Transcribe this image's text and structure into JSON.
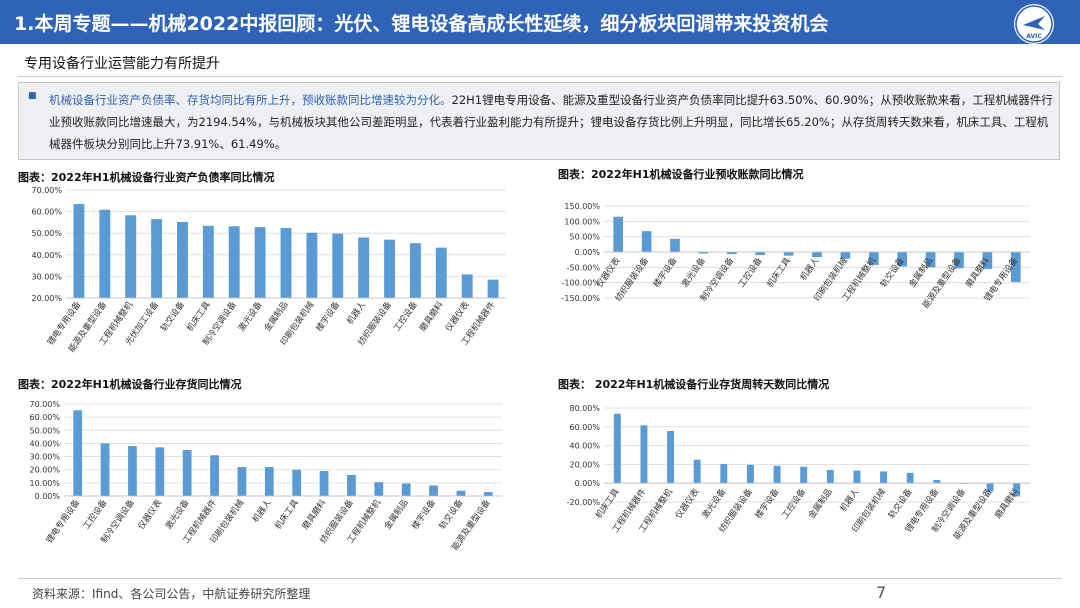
{
  "header": {
    "title": "1.本周专题——机械2022中报回顾：光伏、锂电设备高成长性延续，细分板块回调带来投资机会",
    "logo_text": "AVIC"
  },
  "subtitle": "专用设备行业运营能力有所提升",
  "summary": {
    "bullet": "■",
    "highlight": "机械设备行业资产负债率、存货均同比有所上升，预收账款同比增速较为分化。",
    "body": "22H1锂电专用设备、能源及重型设备行业资产负债率同比提升63.50%、60.90%；从预收账款来看，工程机械器件行业预收账款同比增速最大，为2194.54%，与机械板块其他公司差距明显，代表着行业盈利能力有所提升；锂电设备存货比例上升明显，同比增长65.20%；从存货周转天数来看，机床工具、工程机械器件板块分别同比上升73.91%、61.49%。"
  },
  "chart_data": [
    {
      "type": "bar",
      "title": "图表：2022年H1机械设备行业资产负债率同比情况",
      "categories": [
        "锂电专用设备",
        "能源及重型设备",
        "工程机械整机",
        "光伏加工设备",
        "轨交设备",
        "机床工具",
        "制冷空调设备",
        "激光设备",
        "金属制品",
        "印刷包装机械",
        "楼宇设备",
        "机器人",
        "纺织服装设备",
        "工控设备",
        "磨具磨料",
        "仪器仪表",
        "工程机械器件"
      ],
      "values": [
        63.5,
        60.9,
        58.3,
        56.5,
        55.2,
        53.4,
        53.2,
        52.8,
        52.4,
        50.2,
        49.8,
        48.0,
        47.0,
        45.4,
        43.3,
        30.9,
        28.5
      ],
      "yticks": [
        "20.00%",
        "30.00%",
        "40.00%",
        "50.00%",
        "60.00%",
        "70.00%"
      ],
      "ylim": [
        20,
        70
      ],
      "color": "#5b9bd5"
    },
    {
      "type": "bar",
      "title": "图表：2022年H1机械设备行业预收账款同比情况",
      "categories": [
        "仪器仪表",
        "纺织服装设备",
        "楼宇设备",
        "激光设备",
        "制冷空调设备",
        "工控设备",
        "机床工具",
        "机器人",
        "印刷包装机械",
        "工程机械整机",
        "轨交设备",
        "金属制品",
        "能源及重型设备",
        "磨具磨料",
        "锂电专用设备"
      ],
      "values": [
        115,
        68,
        43,
        -5,
        -7,
        -10,
        -12,
        -17,
        -22,
        -42,
        -47,
        -50,
        -53,
        -55,
        -98
      ],
      "yticks": [
        "-150.00%",
        "-100.00%",
        "-50.00%",
        "0.00%",
        "50.00%",
        "100.00%",
        "150.00%"
      ],
      "ylim": [
        -150,
        150
      ],
      "color": "#5b9bd5"
    },
    {
      "type": "bar",
      "title": "图表：2022年H1机械设备行业存货同比情况",
      "categories": [
        "锂电专用设备",
        "工控设备",
        "制冷空调设备",
        "仪器仪表",
        "激光设备",
        "工程机械器件",
        "印刷包装机械",
        "机器人",
        "机床工具",
        "磨具磨料",
        "纺织服装设备",
        "工程机械整机",
        "金属制品",
        "楼宇设备",
        "轨交设备",
        "能源及重型设备"
      ],
      "values": [
        65.2,
        40.0,
        38.0,
        37.0,
        35.0,
        31.0,
        22.0,
        22.0,
        20.0,
        19.0,
        16.0,
        10.5,
        9.5,
        8.0,
        4.0,
        3.0
      ],
      "yticks": [
        "0.00%",
        "10.00%",
        "20.00%",
        "30.00%",
        "40.00%",
        "50.00%",
        "60.00%",
        "70.00%"
      ],
      "ylim": [
        0,
        70
      ],
      "color": "#5b9bd5"
    },
    {
      "type": "bar",
      "title": "图表： 2022年H1机械设备行业存货周转天数同比情况",
      "categories": [
        "机床工具",
        "工程机械器件",
        "工程机械整机",
        "仪器仪表",
        "激光设备",
        "纺织服装设备",
        "楼宇设备",
        "工控设备",
        "金属制品",
        "机器人",
        "印刷包装机械",
        "轨交设备",
        "锂电专用设备",
        "制冷空调设备",
        "能源及重型设备",
        "磨具磨料"
      ],
      "values": [
        73.91,
        61.49,
        55.5,
        25.0,
        20.5,
        19.5,
        18.5,
        17.5,
        14.0,
        13.5,
        12.5,
        11.0,
        3.5,
        -0.5,
        -9.0,
        -14.0
      ],
      "yticks": [
        "-20.00%",
        "0.00%",
        "20.00%",
        "40.00%",
        "60.00%",
        "80.00%"
      ],
      "ylim": [
        -20,
        80
      ],
      "color": "#5b9bd5"
    }
  ],
  "footer": {
    "source": "资料来源：Ifind、各公司公告，中航证券研究所整理",
    "page": "7"
  }
}
